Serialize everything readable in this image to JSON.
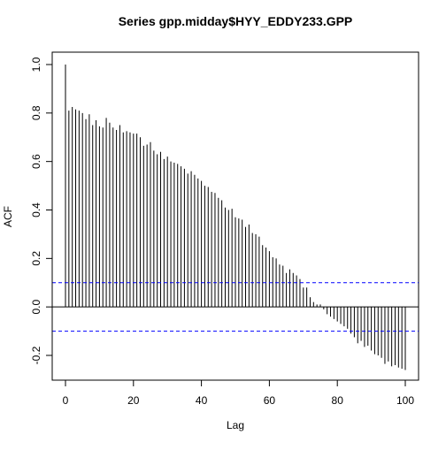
{
  "chart_data": {
    "type": "bar",
    "title": "Series  gpp.midday$HYY_EDDY233.GPP",
    "xlabel": "Lag",
    "ylabel": "ACF",
    "xlim": [
      0,
      100
    ],
    "ylim": [
      -0.3,
      1.0
    ],
    "xticks": [
      0,
      20,
      40,
      60,
      80,
      100
    ],
    "yticks": [
      -0.2,
      0.0,
      0.2,
      0.4,
      0.6,
      0.8,
      1.0
    ],
    "xtick_labels": [
      "0",
      "20",
      "40",
      "60",
      "80",
      "100"
    ],
    "ytick_labels": [
      "-0.2",
      "0.0",
      "0.2",
      "0.4",
      "0.6",
      "0.8",
      "1.0"
    ],
    "confidence_limit": 0.1,
    "confidence_color": "#0000ff",
    "bar_color": "#000000",
    "grid": false,
    "lags": [
      0,
      1,
      2,
      3,
      4,
      5,
      6,
      7,
      8,
      9,
      10,
      11,
      12,
      13,
      14,
      15,
      16,
      17,
      18,
      19,
      20,
      21,
      22,
      23,
      24,
      25,
      26,
      27,
      28,
      29,
      30,
      31,
      32,
      33,
      34,
      35,
      36,
      37,
      38,
      39,
      40,
      41,
      42,
      43,
      44,
      45,
      46,
      47,
      48,
      49,
      50,
      51,
      52,
      53,
      54,
      55,
      56,
      57,
      58,
      59,
      60,
      61,
      62,
      63,
      64,
      65,
      66,
      67,
      68,
      69,
      70,
      71,
      72,
      73,
      74,
      75,
      76,
      77,
      78,
      79,
      80,
      81,
      82,
      83,
      84,
      85,
      86,
      87,
      88,
      89,
      90,
      91,
      92,
      93,
      94,
      95,
      96,
      97,
      98,
      99,
      100
    ],
    "values": [
      1.0,
      0.81,
      0.825,
      0.815,
      0.81,
      0.8,
      0.775,
      0.795,
      0.75,
      0.77,
      0.745,
      0.74,
      0.78,
      0.76,
      0.74,
      0.73,
      0.75,
      0.72,
      0.725,
      0.72,
      0.715,
      0.715,
      0.7,
      0.665,
      0.67,
      0.68,
      0.645,
      0.63,
      0.64,
      0.61,
      0.62,
      0.6,
      0.595,
      0.59,
      0.58,
      0.57,
      0.55,
      0.56,
      0.545,
      0.53,
      0.52,
      0.5,
      0.495,
      0.475,
      0.47,
      0.45,
      0.44,
      0.41,
      0.4,
      0.405,
      0.37,
      0.365,
      0.36,
      0.33,
      0.34,
      0.305,
      0.3,
      0.29,
      0.255,
      0.245,
      0.23,
      0.205,
      0.2,
      0.175,
      0.17,
      0.14,
      0.155,
      0.14,
      0.13,
      0.115,
      0.08,
      0.08,
      0.04,
      0.02,
      0.01,
      0.01,
      -0.01,
      -0.03,
      -0.04,
      -0.05,
      -0.06,
      -0.07,
      -0.08,
      -0.09,
      -0.11,
      -0.125,
      -0.15,
      -0.14,
      -0.165,
      -0.16,
      -0.18,
      -0.195,
      -0.2,
      -0.21,
      -0.235,
      -0.225,
      -0.245,
      -0.24,
      -0.25,
      -0.255,
      -0.26
    ]
  }
}
